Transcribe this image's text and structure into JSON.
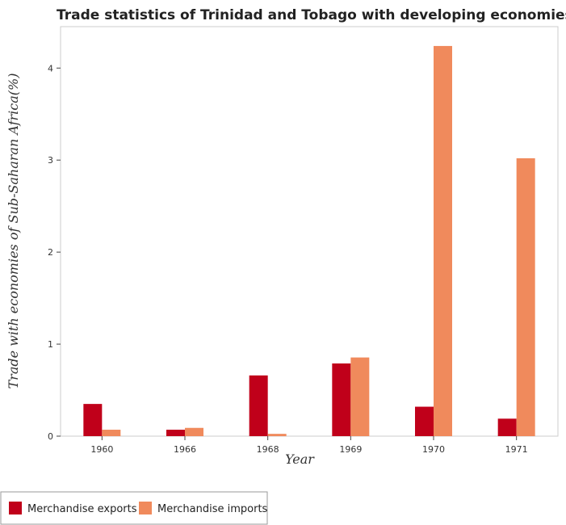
{
  "chart_data": {
    "type": "bar",
    "title": "Trade statistics of Trinidad and Tobago with developing economies in Saharan",
    "xlabel": "Year",
    "ylabel": "Trade with economies of Sub-Saharan Africa(%)",
    "categories": [
      "1960",
      "1966",
      "1968",
      "1969",
      "1970",
      "1971"
    ],
    "series": [
      {
        "name": "Merchandise exports",
        "color": "#c0001a",
        "values": [
          0.35,
          0.07,
          0.66,
          0.79,
          0.32,
          0.19
        ]
      },
      {
        "name": "Merchandise imports",
        "color": "#f08a5c",
        "values": [
          0.07,
          0.09,
          0.025,
          0.855,
          4.24,
          3.02
        ]
      }
    ],
    "ylim": [
      0,
      4.45
    ],
    "yticks": [
      0,
      1,
      2,
      3,
      4
    ],
    "grid": false,
    "legend_position": "bottom-left"
  }
}
